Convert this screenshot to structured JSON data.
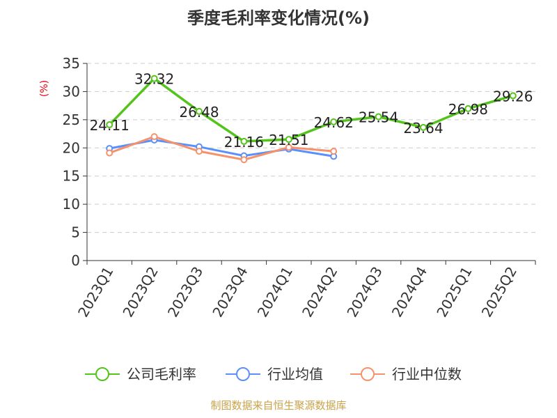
{
  "chart_data": {
    "type": "line",
    "title": "季度毛利率变化情况(%)",
    "ylabel": "(%)",
    "ylim": [
      0,
      35
    ],
    "yticks": [
      "0",
      "5",
      "10",
      "15",
      "20",
      "25",
      "30",
      "35"
    ],
    "categories": [
      "2023Q1",
      "2023Q2",
      "2023Q3",
      "2023Q4",
      "2024Q1",
      "2024Q2",
      "2024Q3",
      "2024Q4",
      "2025Q1",
      "2025Q2"
    ],
    "grid": true,
    "legend_position": "bottom",
    "series": [
      {
        "name": "公司毛利率",
        "color": "#52c41a",
        "values": [
          24.11,
          32.32,
          26.48,
          21.16,
          21.51,
          24.62,
          25.54,
          23.64,
          26.98,
          29.26
        ],
        "labels": [
          "24.11",
          "32.32",
          "26.48",
          "21.16",
          "21.51",
          "24.62",
          "25.54",
          "23.64",
          "26.98",
          "29.26"
        ]
      },
      {
        "name": "行业均值",
        "color": "#5b8ff9",
        "values": [
          19.9,
          21.4,
          20.2,
          18.6,
          19.8,
          18.5,
          null,
          null,
          null,
          null
        ]
      },
      {
        "name": "行业中位数",
        "color": "#f6926b",
        "values": [
          19.1,
          22.0,
          19.4,
          17.9,
          20.1,
          19.4,
          null,
          null,
          null,
          null
        ]
      }
    ]
  },
  "footer": {
    "source": "制图数据来自恒生聚源数据库"
  }
}
